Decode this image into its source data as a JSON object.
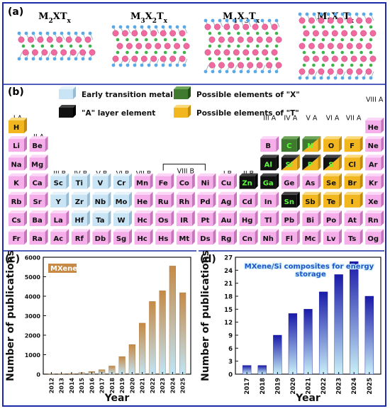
{
  "panel_a": {
    "label": "(a)",
    "structures": [
      {
        "name": "M2XTx",
        "layers": 2
      },
      {
        "name": "M3X2Tx",
        "layers": 3
      },
      {
        "name": "M4X3Tx",
        "layers": 4
      },
      {
        "name": "M5X4Tx",
        "layers": 5
      }
    ],
    "colors": {
      "metal": "#f06aa0",
      "x": "#3cb44b",
      "t": "#5aa9e6"
    }
  },
  "panel_b": {
    "label": "(b)",
    "legend": [
      {
        "label": "Early transition metal",
        "color": "#c5e3f4"
      },
      {
        "label": "Possible elements of \"X\"",
        "color": "#3f7a2f"
      },
      {
        "label": "\"A\" layer element",
        "color": "#111111"
      },
      {
        "label": "Possible elements of \"T\"",
        "color": "#f3b81f"
      }
    ],
    "groups": [
      "I A",
      "II A",
      "III B",
      "IV B",
      "V B",
      "VI B",
      "VII B",
      "VIII B",
      "I B",
      "II B",
      "III A",
      "IV A",
      "V A",
      "VI A",
      "VII A",
      "VIII A"
    ],
    "cells": [
      {
        "s": "H",
        "r": 0,
        "c": 0,
        "t": "T"
      },
      {
        "s": "He",
        "r": 0,
        "c": 17,
        "t": "p"
      },
      {
        "s": "Li",
        "r": 1,
        "c": 0,
        "t": "p"
      },
      {
        "s": "Be",
        "r": 1,
        "c": 1,
        "t": "p"
      },
      {
        "s": "B",
        "r": 1,
        "c": 12,
        "t": "p"
      },
      {
        "s": "C",
        "r": 1,
        "c": 13,
        "t": "X"
      },
      {
        "s": "N",
        "r": 1,
        "c": 14,
        "t": "XT"
      },
      {
        "s": "O",
        "r": 1,
        "c": 15,
        "t": "T"
      },
      {
        "s": "F",
        "r": 1,
        "c": 16,
        "t": "T"
      },
      {
        "s": "Ne",
        "r": 1,
        "c": 17,
        "t": "p"
      },
      {
        "s": "Na",
        "r": 2,
        "c": 0,
        "t": "p"
      },
      {
        "s": "Mg",
        "r": 2,
        "c": 1,
        "t": "p"
      },
      {
        "s": "Al",
        "r": 2,
        "c": 12,
        "t": "A"
      },
      {
        "s": "Si",
        "r": 2,
        "c": 13,
        "t": "AT"
      },
      {
        "s": "P",
        "r": 2,
        "c": 14,
        "t": "AT"
      },
      {
        "s": "S",
        "r": 2,
        "c": 15,
        "t": "AT"
      },
      {
        "s": "Cl",
        "r": 2,
        "c": 16,
        "t": "T"
      },
      {
        "s": "Ar",
        "r": 2,
        "c": 17,
        "t": "p"
      },
      {
        "s": "K",
        "r": 3,
        "c": 0,
        "t": "p"
      },
      {
        "s": "Ca",
        "r": 3,
        "c": 1,
        "t": "p"
      },
      {
        "s": "Sc",
        "r": 3,
        "c": 2,
        "t": "E"
      },
      {
        "s": "Ti",
        "r": 3,
        "c": 3,
        "t": "E"
      },
      {
        "s": "V",
        "r": 3,
        "c": 4,
        "t": "E"
      },
      {
        "s": "Cr",
        "r": 3,
        "c": 5,
        "t": "E"
      },
      {
        "s": "Mn",
        "r": 3,
        "c": 6,
        "t": "p"
      },
      {
        "s": "Fe",
        "r": 3,
        "c": 7,
        "t": "p"
      },
      {
        "s": "Co",
        "r": 3,
        "c": 8,
        "t": "p"
      },
      {
        "s": "Ni",
        "r": 3,
        "c": 9,
        "t": "p"
      },
      {
        "s": "Cu",
        "r": 3,
        "c": 10,
        "t": "p"
      },
      {
        "s": "Zn",
        "r": 3,
        "c": 11,
        "t": "A"
      },
      {
        "s": "Ga",
        "r": 3,
        "c": 12,
        "t": "A"
      },
      {
        "s": "Ge",
        "r": 3,
        "c": 13,
        "t": "p"
      },
      {
        "s": "As",
        "r": 3,
        "c": 14,
        "t": "p"
      },
      {
        "s": "Se",
        "r": 3,
        "c": 15,
        "t": "T"
      },
      {
        "s": "Br",
        "r": 3,
        "c": 16,
        "t": "T"
      },
      {
        "s": "Kr",
        "r": 3,
        "c": 17,
        "t": "p"
      },
      {
        "s": "Rb",
        "r": 4,
        "c": 0,
        "t": "p"
      },
      {
        "s": "Sr",
        "r": 4,
        "c": 1,
        "t": "p"
      },
      {
        "s": "Y",
        "r": 4,
        "c": 2,
        "t": "E"
      },
      {
        "s": "Zr",
        "r": 4,
        "c": 3,
        "t": "E"
      },
      {
        "s": "Nb",
        "r": 4,
        "c": 4,
        "t": "E"
      },
      {
        "s": "Mo",
        "r": 4,
        "c": 5,
        "t": "E"
      },
      {
        "s": "He",
        "r": 4,
        "c": 6,
        "t": "p"
      },
      {
        "s": "Ru",
        "r": 4,
        "c": 7,
        "t": "p"
      },
      {
        "s": "Rh",
        "r": 4,
        "c": 8,
        "t": "p"
      },
      {
        "s": "Pd",
        "r": 4,
        "c": 9,
        "t": "p"
      },
      {
        "s": "Ag",
        "r": 4,
        "c": 10,
        "t": "p"
      },
      {
        "s": "Cd",
        "r": 4,
        "c": 11,
        "t": "p"
      },
      {
        "s": "In",
        "r": 4,
        "c": 12,
        "t": "p"
      },
      {
        "s": "Sn",
        "r": 4,
        "c": 13,
        "t": "A"
      },
      {
        "s": "Sb",
        "r": 4,
        "c": 14,
        "t": "T"
      },
      {
        "s": "Te",
        "r": 4,
        "c": 15,
        "t": "T"
      },
      {
        "s": "I",
        "r": 4,
        "c": 16,
        "t": "T"
      },
      {
        "s": "Xe",
        "r": 4,
        "c": 17,
        "t": "p"
      },
      {
        "s": "Cs",
        "r": 5,
        "c": 0,
        "t": "p"
      },
      {
        "s": "Ba",
        "r": 5,
        "c": 1,
        "t": "p"
      },
      {
        "s": "La",
        "r": 5,
        "c": 2,
        "t": "p"
      },
      {
        "s": "Hf",
        "r": 5,
        "c": 3,
        "t": "E"
      },
      {
        "s": "Ta",
        "r": 5,
        "c": 4,
        "t": "E"
      },
      {
        "s": "W",
        "r": 5,
        "c": 5,
        "t": "E"
      },
      {
        "s": "Hc",
        "r": 5,
        "c": 6,
        "t": "p"
      },
      {
        "s": "Os",
        "r": 5,
        "c": 7,
        "t": "p"
      },
      {
        "s": "IR",
        "r": 5,
        "c": 8,
        "t": "p"
      },
      {
        "s": "Pt",
        "r": 5,
        "c": 9,
        "t": "p"
      },
      {
        "s": "Au",
        "r": 5,
        "c": 10,
        "t": "p"
      },
      {
        "s": "Hg",
        "r": 5,
        "c": 11,
        "t": "p"
      },
      {
        "s": "Tl",
        "r": 5,
        "c": 12,
        "t": "p"
      },
      {
        "s": "Pb",
        "r": 5,
        "c": 13,
        "t": "p"
      },
      {
        "s": "Bi",
        "r": 5,
        "c": 14,
        "t": "p"
      },
      {
        "s": "Po",
        "r": 5,
        "c": 15,
        "t": "p"
      },
      {
        "s": "At",
        "r": 5,
        "c": 16,
        "t": "p"
      },
      {
        "s": "Rn",
        "r": 5,
        "c": 17,
        "t": "p"
      },
      {
        "s": "Fr",
        "r": 6,
        "c": 0,
        "t": "p"
      },
      {
        "s": "Ra",
        "r": 6,
        "c": 1,
        "t": "p"
      },
      {
        "s": "Ac",
        "r": 6,
        "c": 2,
        "t": "p"
      },
      {
        "s": "Rf",
        "r": 6,
        "c": 3,
        "t": "p"
      },
      {
        "s": "Db",
        "r": 6,
        "c": 4,
        "t": "p"
      },
      {
        "s": "Sg",
        "r": 6,
        "c": 5,
        "t": "p"
      },
      {
        "s": "Hc",
        "r": 6,
        "c": 6,
        "t": "p"
      },
      {
        "s": "Hs",
        "r": 6,
        "c": 7,
        "t": "p"
      },
      {
        "s": "Mt",
        "r": 6,
        "c": 8,
        "t": "p"
      },
      {
        "s": "Ds",
        "r": 6,
        "c": 9,
        "t": "p"
      },
      {
        "s": "Rg",
        "r": 6,
        "c": 10,
        "t": "p"
      },
      {
        "s": "Cn",
        "r": 6,
        "c": 11,
        "t": "p"
      },
      {
        "s": "Nh",
        "r": 6,
        "c": 12,
        "t": "p"
      },
      {
        "s": "Fl",
        "r": 6,
        "c": 13,
        "t": "p"
      },
      {
        "s": "Mc",
        "r": 6,
        "c": 14,
        "t": "p"
      },
      {
        "s": "Lv",
        "r": 6,
        "c": 15,
        "t": "p"
      },
      {
        "s": "Ts",
        "r": 6,
        "c": 16,
        "t": "p"
      },
      {
        "s": "Og",
        "r": 6,
        "c": 17,
        "t": "p"
      }
    ]
  },
  "chart_data": [
    {
      "panel": "(c)",
      "type": "bar",
      "legend": "MXene",
      "xlabel": "Year",
      "ylabel": "Number of publications",
      "categories": [
        "2012",
        "2013",
        "2014",
        "2015",
        "2016",
        "2017",
        "2018",
        "2019",
        "2020",
        "2021",
        "2022",
        "2023",
        "2024",
        "2025"
      ],
      "values": [
        5,
        15,
        35,
        75,
        140,
        230,
        420,
        900,
        1520,
        2620,
        3730,
        4280,
        5550,
        4180
      ],
      "ylim": [
        0,
        6000
      ],
      "yticks": [
        0,
        1000,
        2000,
        3000,
        4000,
        5000,
        6000
      ],
      "bar_color": "#c68a45",
      "bar_color_bottom": "#bfe4f7"
    },
    {
      "panel": "(d)",
      "type": "bar",
      "title": "MXene/Si composites for energy storage",
      "xlabel": "Year",
      "ylabel": "Number of publications",
      "categories": [
        "2017",
        "2018",
        "2019",
        "2020",
        "2021",
        "2022",
        "2023",
        "2024",
        "2025"
      ],
      "values": [
        2,
        2,
        9,
        14,
        15,
        19,
        23,
        26,
        18
      ],
      "ylim": [
        0,
        27
      ],
      "yticks": [
        0,
        3,
        6,
        9,
        12,
        15,
        18,
        21,
        24,
        27
      ],
      "bar_color": "#1a1aa8",
      "bar_color_bottom": "#c9f0f8"
    }
  ]
}
